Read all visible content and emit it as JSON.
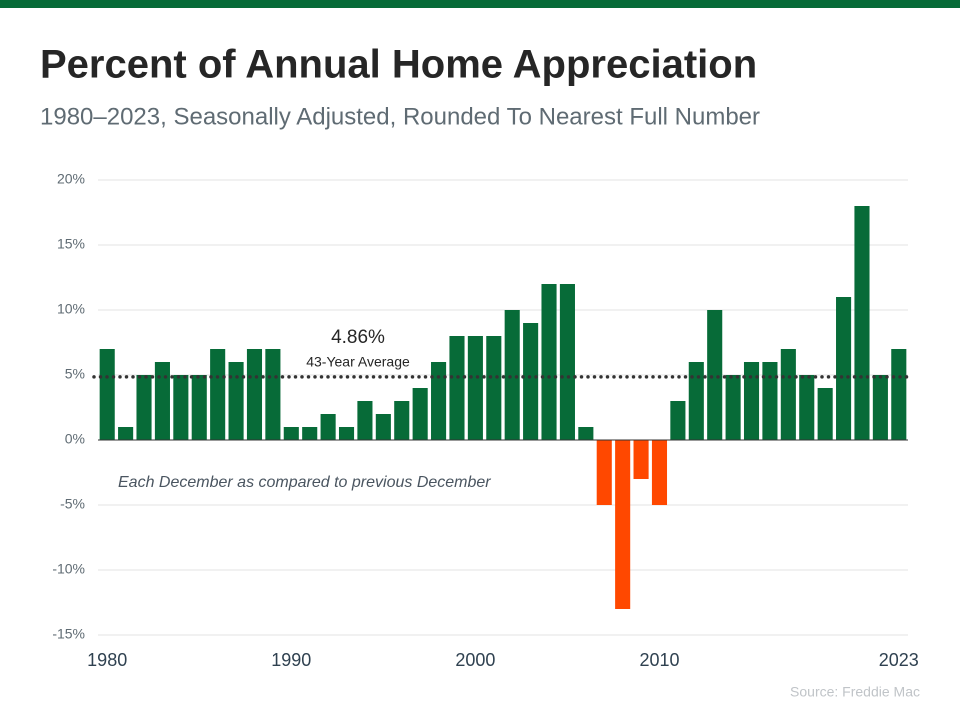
{
  "chart_data": {
    "type": "bar",
    "title": "Percent of Annual Home Appreciation",
    "subtitle": "1980–2023, Seasonally Adjusted, Rounded To Nearest Full Number",
    "categories": [
      "1980",
      null,
      null,
      null,
      null,
      null,
      null,
      null,
      null,
      null,
      "1990",
      null,
      null,
      null,
      null,
      null,
      null,
      null,
      null,
      null,
      "2000",
      null,
      null,
      null,
      null,
      null,
      null,
      null,
      null,
      null,
      "2010",
      null,
      null,
      null,
      null,
      null,
      null,
      null,
      null,
      null,
      null,
      null,
      null,
      "2023"
    ],
    "values": [
      7,
      1,
      5,
      6,
      5,
      5,
      7,
      6,
      7,
      7,
      1,
      1,
      2,
      1,
      3,
      2,
      3,
      4,
      6,
      8,
      8,
      8,
      10,
      9,
      12,
      12,
      1,
      -5,
      -13,
      -3,
      -5,
      3,
      6,
      10,
      5,
      6,
      6,
      7,
      5,
      4,
      11,
      18,
      5,
      7
    ],
    "color": "#076b38",
    "negative_color": "#ff4800",
    "ylim": [
      -15,
      20
    ],
    "yticks": [
      {
        "value": -15,
        "label": "-15%"
      },
      {
        "value": -10,
        "label": "-10%"
      },
      {
        "value": -5,
        "label": "-5%"
      },
      {
        "value": 0,
        "label": "0%"
      },
      {
        "value": 5,
        "label": "5%"
      },
      {
        "value": 10,
        "label": "10%"
      },
      {
        "value": 15,
        "label": "15%"
      },
      {
        "value": 20,
        "label": "20%"
      }
    ],
    "grid": true,
    "average": {
      "value": 4.86,
      "label": "4.86%"
    },
    "average_caption": "43-Year Average",
    "note": "Each December as compared to previous December",
    "source": "Source: Freddie Mac"
  }
}
